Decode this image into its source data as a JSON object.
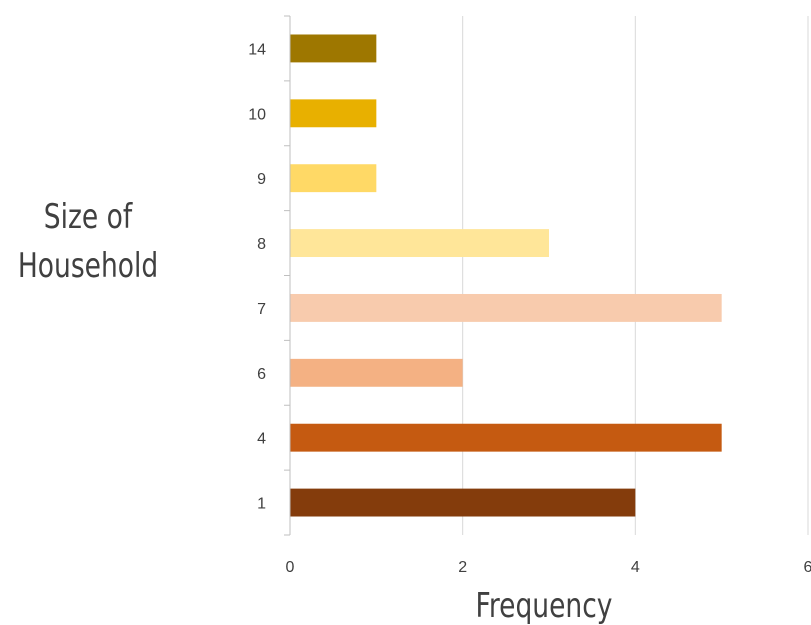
{
  "chart_data": {
    "type": "bar",
    "orientation": "horizontal",
    "categories": [
      "1",
      "4",
      "6",
      "7",
      "8",
      "9",
      "10",
      "14"
    ],
    "values": [
      4,
      5,
      2,
      5,
      3,
      1,
      1,
      1
    ],
    "bar_colors": [
      "#843C0C",
      "#C55A11",
      "#F4B183",
      "#F8CBAD",
      "#FFE699",
      "#FFD966",
      "#E8B000",
      "#9E7700"
    ],
    "xlabel": "Frequency",
    "ylabel_lines": [
      "Size of",
      "Household"
    ],
    "xlim": [
      0,
      6
    ],
    "x_ticks": [
      "0",
      "2",
      "4",
      "6"
    ],
    "grid": true,
    "grid_color": "#D9D9D9"
  }
}
